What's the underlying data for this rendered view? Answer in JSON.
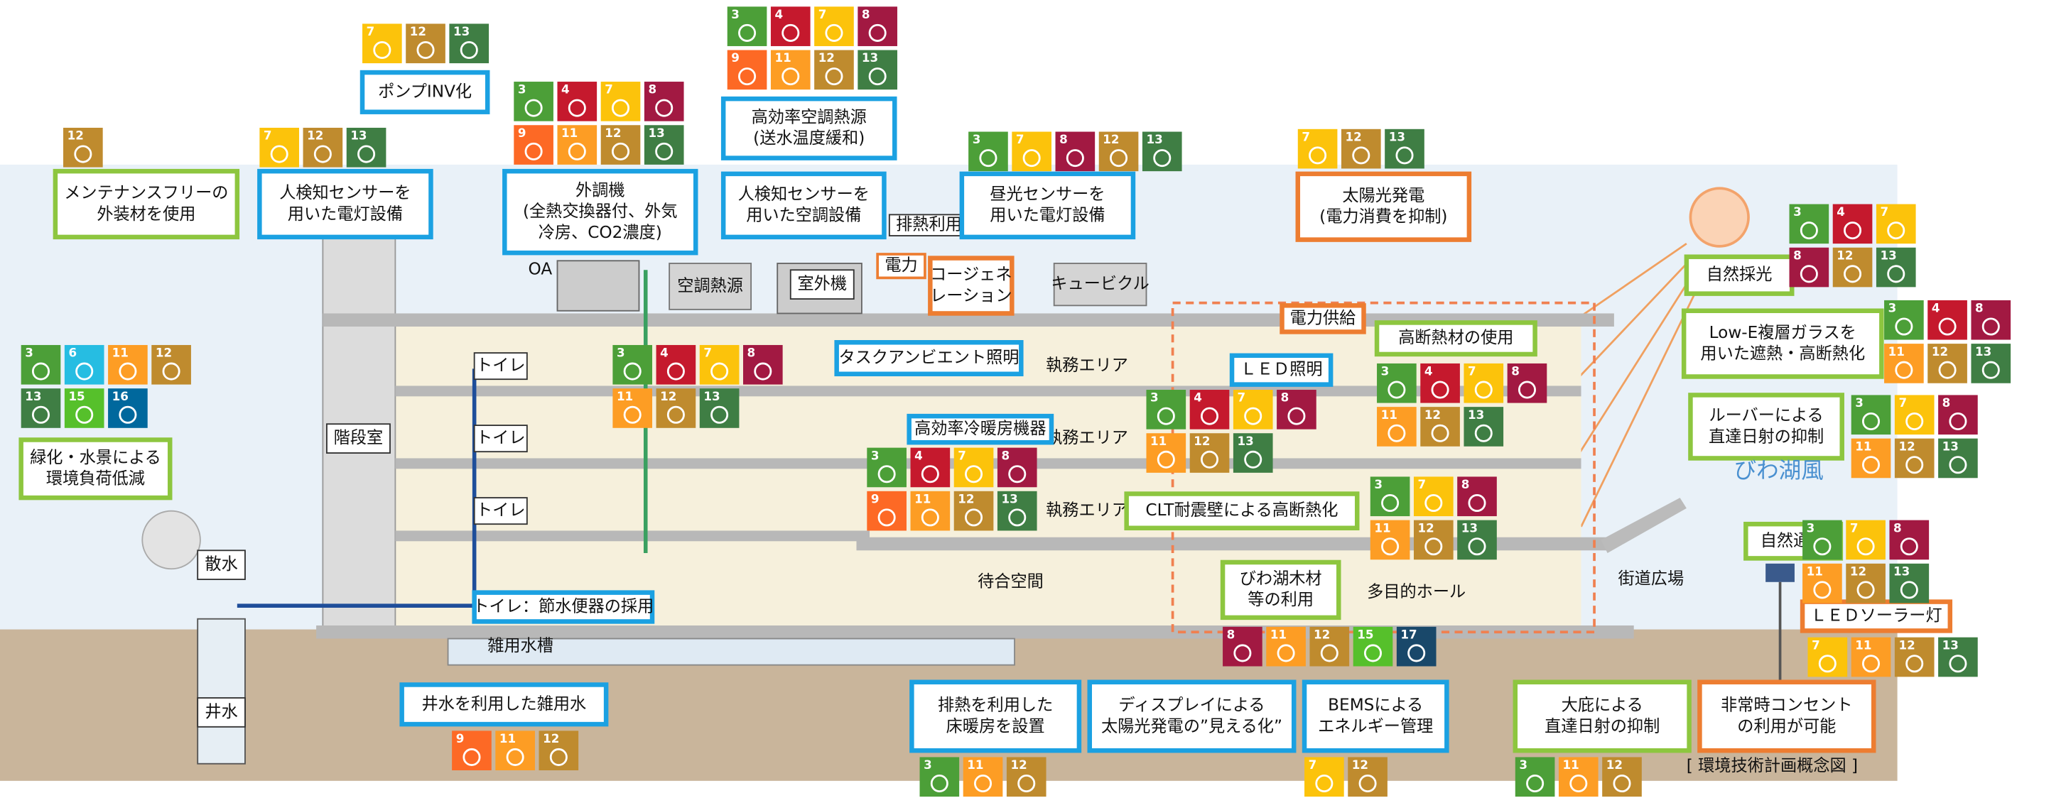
{
  "labels": [
    {
      "lines": [
        "メンテナンスフリーの",
        "外装材を使用"
      ]
    },
    {
      "lines": [
        "人検知センサーを",
        "用いた電灯設備"
      ]
    },
    {
      "lines": [
        "外調機",
        "(全熱交換器付、外気",
        "冷房、CO2濃度)"
      ]
    },
    {
      "lines": [
        "ポンプINV化"
      ]
    },
    {
      "lines": [
        "高効率空調熱源",
        "(送水温度緩和)"
      ]
    },
    {
      "lines": [
        "人検知センサーを",
        "用いた空調設備"
      ]
    },
    {
      "lines": [
        "排熱利用"
      ]
    },
    {
      "lines": [
        "昼光センサーを",
        "用いた電灯設備"
      ]
    },
    {
      "lines": [
        "太陽光発電",
        "(電力消費を抑制)"
      ]
    },
    {
      "lines": [
        "空調熱源"
      ]
    },
    {
      "lines": [
        "室外機"
      ]
    },
    {
      "lines": [
        "電力"
      ]
    },
    {
      "lines": [
        "コージェネ",
        "レーション"
      ]
    },
    {
      "lines": [
        "キュービクル"
      ]
    },
    {
      "lines": [
        "自然採光"
      ]
    },
    {
      "lines": [
        "Low-E複層ガラスを",
        "用いた遮熱・高断熱化"
      ]
    },
    {
      "lines": [
        "ルーバーによる",
        "直達日射の抑制"
      ]
    },
    {
      "lines": [
        "びわ湖風"
      ]
    },
    {
      "lines": [
        "自然通風"
      ]
    },
    {
      "lines": [
        "ＬＥＤソーラー灯"
      ]
    },
    {
      "lines": [
        "電力供給"
      ]
    },
    {
      "lines": [
        "ＬＥＤ照明"
      ]
    },
    {
      "lines": [
        "高断熱材の使用"
      ]
    },
    {
      "lines": [
        "タスクアンビエント照明"
      ]
    },
    {
      "lines": [
        "執務エリア"
      ]
    },
    {
      "lines": [
        "執務エリア"
      ]
    },
    {
      "lines": [
        "執務エリア"
      ]
    },
    {
      "lines": [
        "高効率冷暖房機器"
      ]
    },
    {
      "lines": [
        "CLT耐震壁による高断熱化"
      ]
    },
    {
      "lines": [
        "びわ湖木材",
        "等の利用"
      ]
    },
    {
      "lines": [
        "多目的ホール"
      ]
    },
    {
      "lines": [
        "街道広場"
      ]
    },
    {
      "lines": [
        "待合空間"
      ]
    },
    {
      "lines": [
        "階段室"
      ]
    },
    {
      "lines": [
        "トイレ"
      ]
    },
    {
      "lines": [
        "トイレ"
      ]
    },
    {
      "lines": [
        "トイレ"
      ]
    },
    {
      "lines": [
        "トイレ：節水便器の採用"
      ]
    },
    {
      "lines": [
        "緑化・水景による",
        "環境負荷低減"
      ]
    },
    {
      "lines": [
        "散水"
      ]
    },
    {
      "lines": [
        "井水"
      ]
    },
    {
      "lines": [
        "雑用水槽"
      ]
    },
    {
      "lines": [
        "井水を利用した雑用水"
      ]
    },
    {
      "lines": [
        "排熱を利用した",
        "床暖房を設置"
      ]
    },
    {
      "lines": [
        "ディスプレイによる",
        "太陽光発電の”見える化”"
      ]
    },
    {
      "lines": [
        "BEMSによる",
        "エネルギー管理"
      ]
    },
    {
      "lines": [
        "大庇による",
        "直達日射の抑制"
      ]
    },
    {
      "lines": [
        "非常時コンセント",
        "の利用が可能"
      ]
    },
    {
      "lines": [
        "[ 環境技術計画概念図 ]"
      ]
    },
    {
      "lines": [
        "OA"
      ]
    }
  ],
  "sdg_groups": [
    {
      "goals": [
        [
          7,
          12,
          13
        ]
      ]
    },
    {
      "goals": [
        [
          12
        ]
      ]
    },
    {
      "goals": [
        [
          7,
          12,
          13
        ]
      ]
    },
    {
      "goals": [
        [
          3,
          4,
          7,
          8
        ],
        [
          9,
          11,
          12,
          13
        ]
      ]
    },
    {
      "goals": [
        [
          3,
          4,
          7,
          8
        ],
        [
          9,
          11,
          12,
          13
        ]
      ]
    },
    {
      "goals": [
        [
          3,
          7,
          8,
          12,
          13
        ]
      ]
    },
    {
      "goals": [
        [
          7,
          12,
          13
        ]
      ]
    },
    {
      "goals": [
        [
          3,
          6,
          11,
          12
        ],
        [
          13,
          15,
          16
        ]
      ]
    },
    {
      "goals": [
        [
          3,
          4,
          7,
          8
        ],
        [
          11,
          12,
          13
        ]
      ]
    },
    {
      "goals": [
        [
          3,
          4,
          7,
          8
        ],
        [
          11,
          12,
          13
        ]
      ]
    },
    {
      "goals": [
        [
          3,
          4,
          7,
          8
        ],
        [
          11,
          12,
          13
        ]
      ]
    },
    {
      "goals": [
        [
          3,
          4,
          7
        ],
        [
          8,
          12,
          13
        ]
      ]
    },
    {
      "goals": [
        [
          3,
          4,
          8
        ],
        [
          11,
          12,
          13
        ]
      ]
    },
    {
      "goals": [
        [
          3,
          7,
          8
        ],
        [
          11,
          12,
          13
        ]
      ]
    },
    {
      "goals": [
        [
          3,
          4,
          7,
          8
        ],
        [
          9,
          11,
          12,
          13
        ]
      ]
    },
    {
      "goals": [
        [
          3,
          7,
          8
        ],
        [
          11,
          12,
          13
        ]
      ]
    },
    {
      "goals": [
        [
          3,
          7,
          8
        ],
        [
          11,
          12,
          13
        ]
      ]
    },
    {
      "goals": [
        [
          8,
          11,
          12,
          15,
          17
        ]
      ]
    },
    {
      "goals": [
        [
          9,
          11,
          12
        ]
      ]
    },
    {
      "goals": [
        [
          3,
          11,
          12
        ]
      ]
    },
    {
      "goals": [
        [
          7,
          12
        ]
      ]
    },
    {
      "goals": [
        [
          7,
          11,
          12,
          13
        ]
      ]
    },
    {
      "goals": [
        [
          3,
          11,
          12
        ]
      ]
    }
  ]
}
